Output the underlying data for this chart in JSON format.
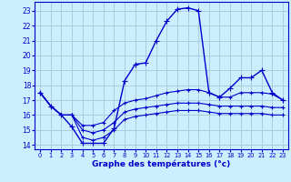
{
  "title": "Graphe des températures (°c)",
  "bg_color": "#cceeff",
  "grid_color": "#aaccdd",
  "line_color": "#0000cc",
  "hours": [
    0,
    1,
    2,
    3,
    4,
    5,
    6,
    7,
    8,
    9,
    10,
    11,
    12,
    13,
    14,
    15,
    16,
    17,
    18,
    19,
    20,
    21,
    22,
    23
  ],
  "temp_actual": [
    17.5,
    16.6,
    16.0,
    15.2,
    14.1,
    14.1,
    14.1,
    15.1,
    18.3,
    19.4,
    19.5,
    21.0,
    22.3,
    23.1,
    23.2,
    23.0,
    17.5,
    17.2,
    17.8,
    18.5,
    18.5,
    19.0,
    17.5,
    17.0
  ],
  "temp_line2": [
    17.5,
    16.6,
    16.0,
    16.0,
    15.3,
    15.3,
    15.5,
    16.3,
    16.8,
    17.0,
    17.1,
    17.3,
    17.5,
    17.6,
    17.7,
    17.7,
    17.5,
    17.2,
    17.2,
    17.5,
    17.5,
    17.5,
    17.4,
    17.0
  ],
  "temp_line3": [
    17.5,
    16.6,
    16.0,
    16.0,
    15.0,
    14.8,
    15.0,
    15.5,
    16.2,
    16.4,
    16.5,
    16.6,
    16.7,
    16.8,
    16.8,
    16.8,
    16.7,
    16.6,
    16.6,
    16.6,
    16.6,
    16.6,
    16.5,
    16.5
  ],
  "temp_line4": [
    17.5,
    16.6,
    16.0,
    16.0,
    14.5,
    14.3,
    14.5,
    15.0,
    15.7,
    15.9,
    16.0,
    16.1,
    16.2,
    16.3,
    16.3,
    16.3,
    16.2,
    16.1,
    16.1,
    16.1,
    16.1,
    16.1,
    16.0,
    16.0
  ],
  "ylim": [
    13.7,
    23.6
  ],
  "xlim": [
    -0.5,
    23.5
  ],
  "yticks": [
    14,
    15,
    16,
    17,
    18,
    19,
    20,
    21,
    22,
    23
  ],
  "xticks": [
    0,
    1,
    2,
    3,
    4,
    5,
    6,
    7,
    8,
    9,
    10,
    11,
    12,
    13,
    14,
    15,
    16,
    17,
    18,
    19,
    20,
    21,
    22,
    23
  ]
}
